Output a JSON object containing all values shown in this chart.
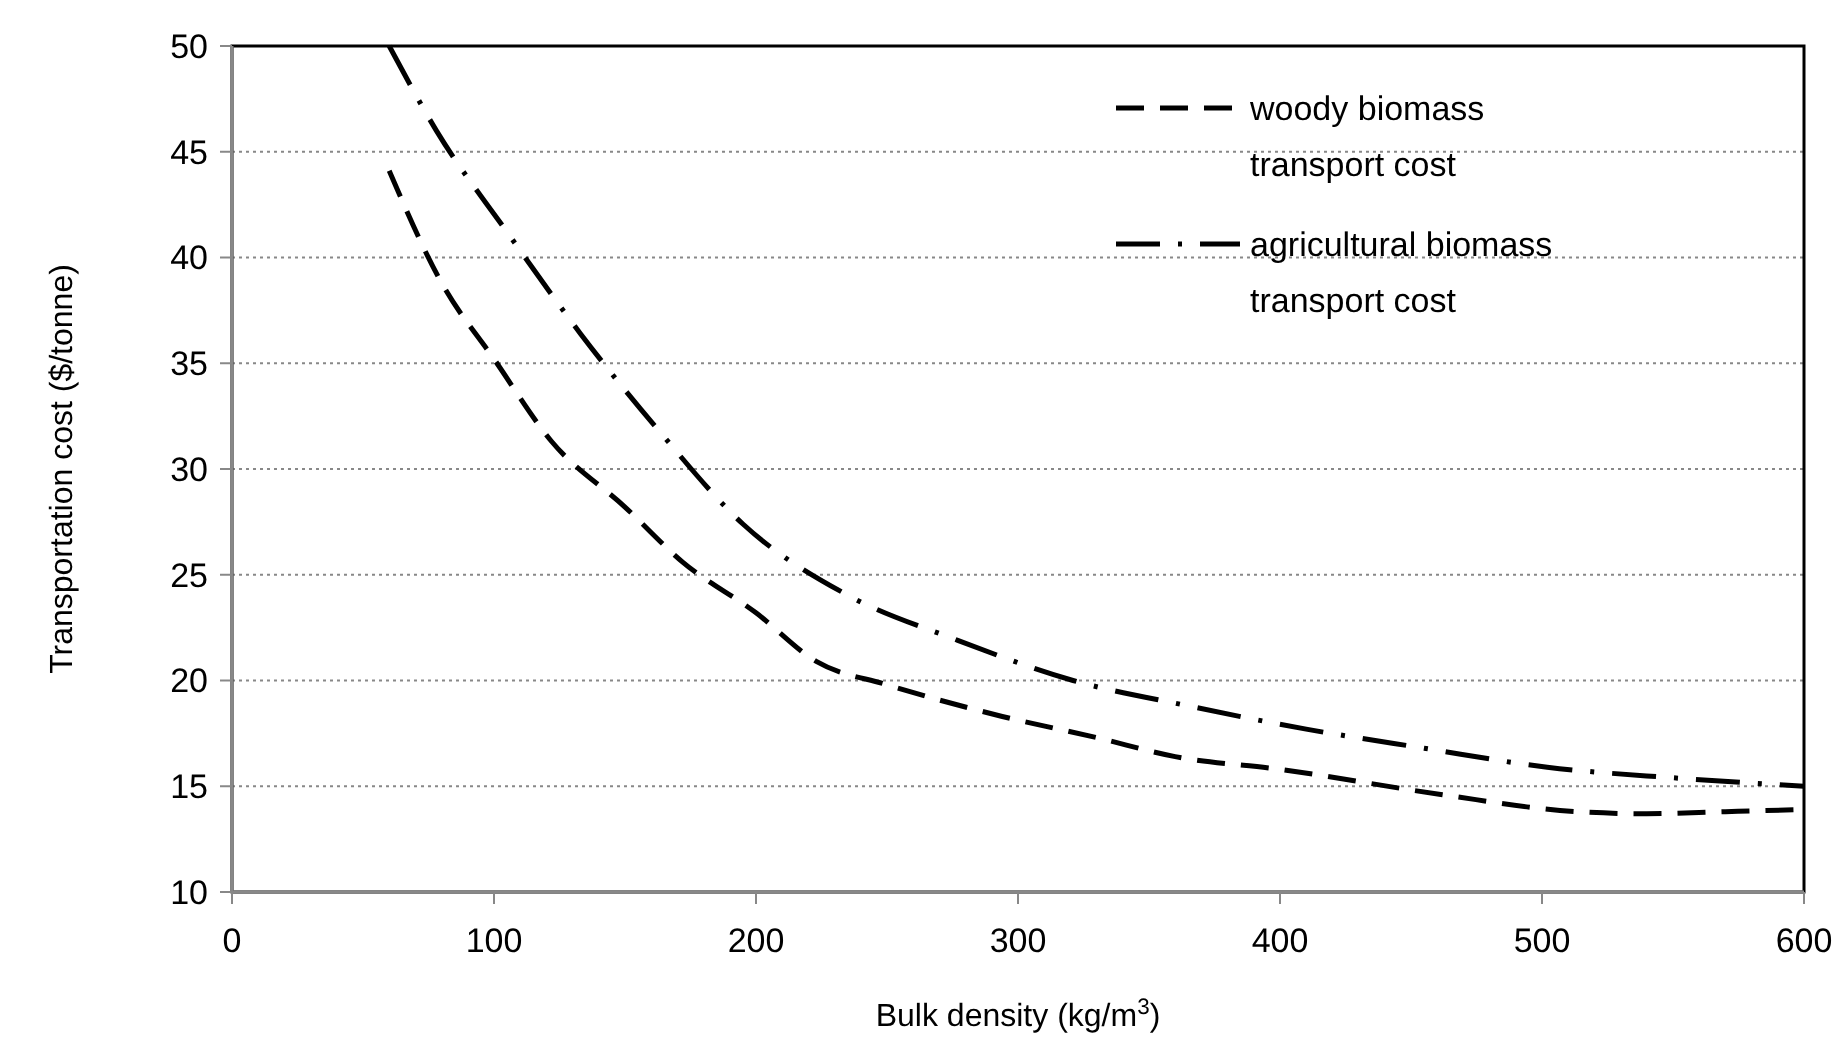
{
  "chart_data": {
    "type": "line",
    "xlabel": "Bulk density (kg/m$^{3}$)",
    "ylabel": "Transportation cost ($/tonne)",
    "xlim": [
      0,
      600
    ],
    "xticks": [
      0,
      100,
      200,
      300,
      400,
      500,
      600
    ],
    "ylim": [
      10,
      50
    ],
    "yticks": [
      10,
      15,
      20,
      25,
      30,
      35,
      40,
      45,
      50
    ],
    "grid": "y",
    "legend": "top right",
    "marker": "none",
    "series": [
      {
        "name": "woody biomass transport cost",
        "color": "#000000",
        "line_style": "dashed",
        "x": [
          60,
          80,
          100,
          122,
          150,
          172,
          200,
          223,
          250,
          294,
          330,
          360,
          400,
          462,
          513,
          540,
          570,
          600
        ],
        "values": [
          44.1,
          38.8,
          35.2,
          31.3,
          28.2,
          25.6,
          23.2,
          20.9,
          19.8,
          18.3,
          17.3,
          16.4,
          15.8,
          14.6,
          13.8,
          13.7,
          13.8,
          13.9
        ]
      },
      {
        "name": "agricultural biomass transport cost",
        "color": "#000000",
        "line_style": "dashdot",
        "x": [
          60,
          78,
          105,
          133,
          163,
          195,
          234,
          277,
          321,
          365,
          410,
          455,
          502,
          550,
          600
        ],
        "values": [
          50,
          46,
          41.2,
          36.4,
          31.8,
          27.4,
          24.1,
          21.9,
          20,
          18.8,
          17.7,
          16.8,
          15.9,
          15.4,
          15
        ]
      }
    ]
  }
}
